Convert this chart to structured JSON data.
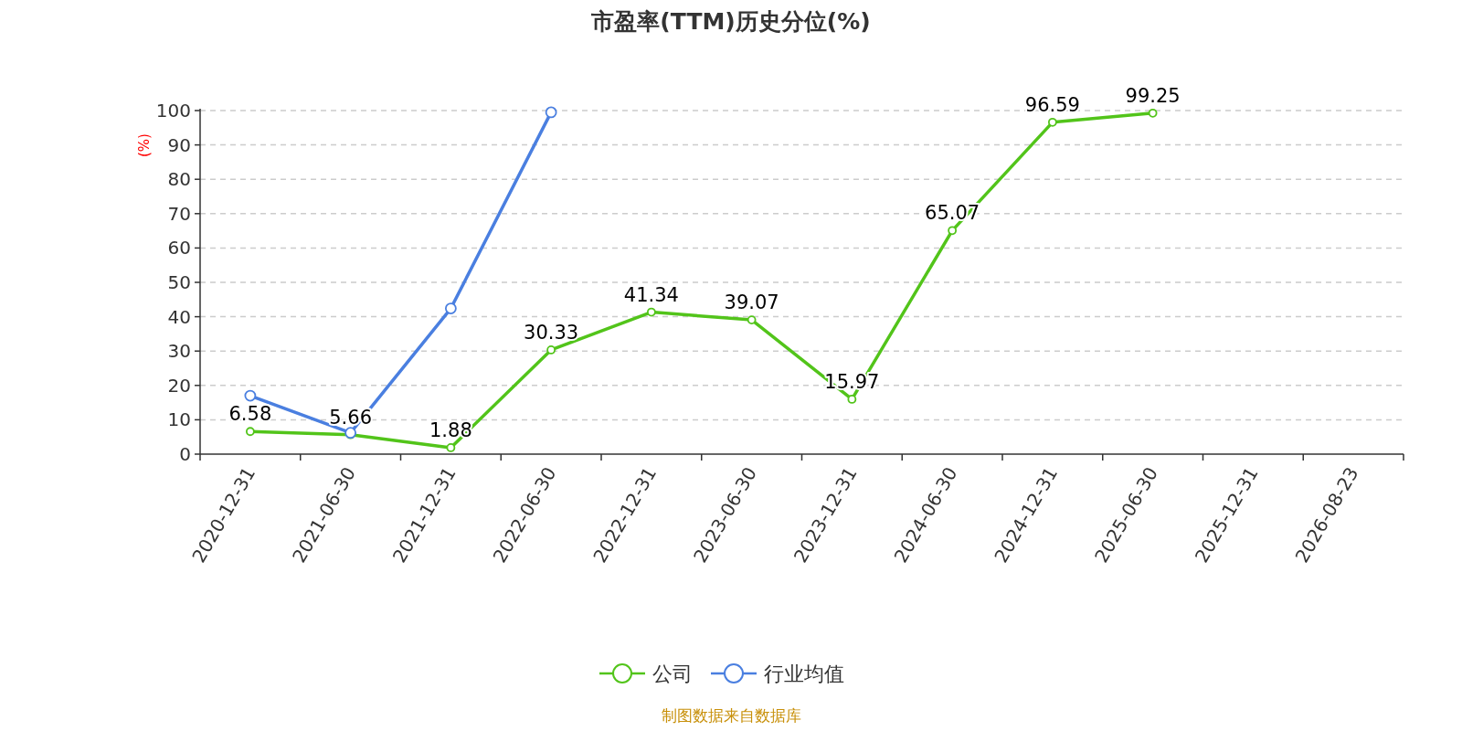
{
  "chart_data": {
    "type": "line",
    "title": "市盈率(TTM)历史分位(%)",
    "ylabel": "(%)",
    "categories": [
      "2020-12-31",
      "2021-06-30",
      "2021-12-31",
      "2022-06-30",
      "2022-12-31",
      "2023-06-30",
      "2023-12-31",
      "2024-06-30",
      "2024-12-31",
      "2025-06-30",
      "2025-12-31",
      "2026-08-23"
    ],
    "series": [
      {
        "name": "公司",
        "color": "#52c41a",
        "values": [
          6.58,
          5.66,
          1.88,
          30.33,
          41.34,
          39.07,
          15.97,
          65.07,
          96.59,
          99.25,
          null,
          null
        ],
        "value_labels": [
          "6.58",
          "5.66",
          "1.88",
          "30.33",
          "41.34",
          "39.07",
          "15.97",
          "65.07",
          "96.59",
          "99.25",
          null,
          null
        ]
      },
      {
        "name": "行业均值",
        "color": "#4a7fe0",
        "values": [
          17.0,
          6.2,
          42.4,
          99.5,
          null,
          null,
          null,
          null,
          null,
          null,
          null,
          null
        ]
      }
    ],
    "ylim": [
      0,
      100
    ],
    "yticks": [
      0,
      10,
      20,
      30,
      40,
      50,
      60,
      70,
      80,
      90,
      100
    ],
    "grid": "y",
    "legend": "bottom",
    "marker": "circle",
    "line_style": "solid",
    "annotations": [
      "制图数据来自数据库"
    ]
  }
}
